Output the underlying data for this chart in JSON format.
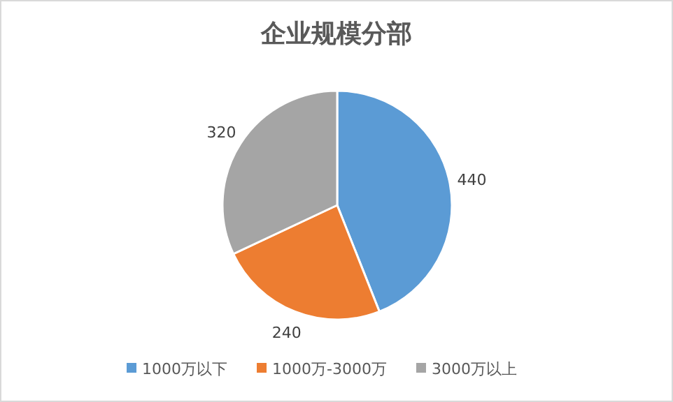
{
  "chart_data": {
    "type": "pie",
    "title": "企业规模分部",
    "categories": [
      "1000万以下",
      "1000万-3000万",
      "3000万以上"
    ],
    "values": [
      440,
      240,
      320
    ],
    "colors": [
      "#5b9bd5",
      "#ed7d31",
      "#a5a5a5"
    ],
    "data_labels": true,
    "legend": "bottom"
  }
}
